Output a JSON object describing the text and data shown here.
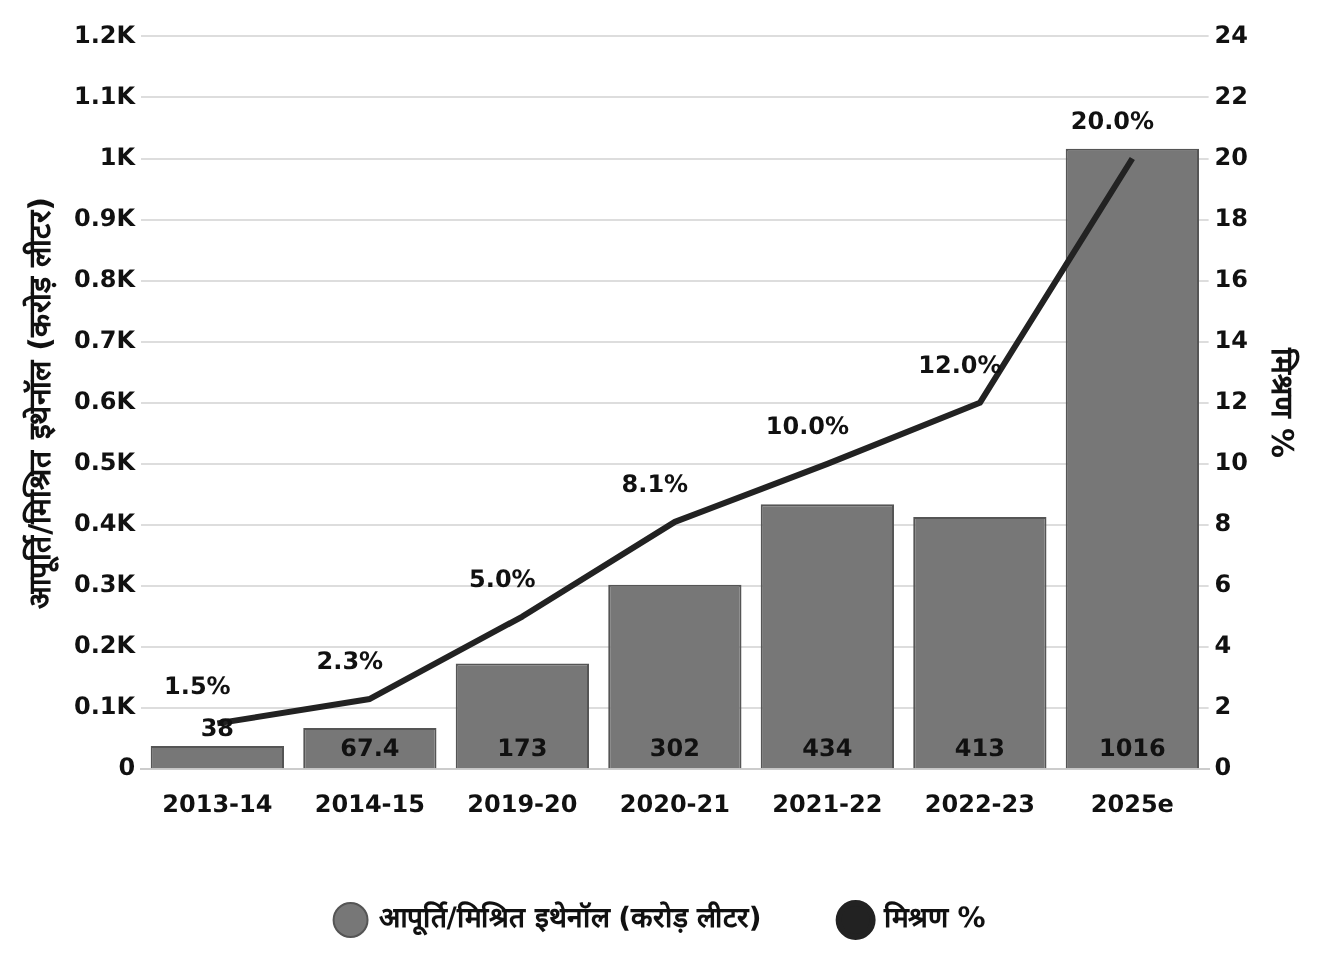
{
  "chart_data": {
    "type": "bar",
    "categories": [
      "2013-14",
      "2014-15",
      "2019-20",
      "2020-21",
      "2021-22",
      "2022-23",
      "2025e"
    ],
    "series": [
      {
        "name": "आपूर्ति/मिश्रित इथेनॉल (करोड़ लीटर)",
        "color": "#777777",
        "values": [
          38,
          67.4,
          173,
          302,
          434,
          413,
          1016
        ],
        "value_labels": [
          "38",
          "67.4",
          "173",
          "302",
          "434",
          "413",
          "1016"
        ]
      },
      {
        "name": "मिश्रण %",
        "type": "line",
        "axis": "y2",
        "color": "#222222",
        "values": [
          1.5,
          2.3,
          5.0,
          8.1,
          10.0,
          12.0,
          20.0
        ],
        "value_labels": [
          "1.5%",
          "2.3%",
          "5.0%",
          "8.1%",
          "10.0%",
          "12.0%",
          "20.0%"
        ]
      }
    ],
    "ylabel": "आपूर्ति/मिश्रित इथेनॉल (करोड़ लीटर)",
    "y2label": "मिश्रण %",
    "ylim": [
      0,
      1200
    ],
    "yticks": [
      0,
      {
        "value": 100,
        "label": "0.1K"
      },
      {
        "value": 200,
        "label": "0.2K"
      },
      {
        "value": 300,
        "label": "0.3K"
      },
      {
        "value": 400,
        "label": "0.4K"
      },
      {
        "value": 500,
        "label": "0.5K"
      },
      {
        "value": 600,
        "label": "0.6K"
      },
      {
        "value": 700,
        "label": "0.7K"
      },
      {
        "value": 800,
        "label": "0.8K"
      },
      {
        "value": 900,
        "label": "0.9K"
      },
      {
        "value": 1000,
        "label": "1K"
      },
      {
        "value": 1100,
        "label": "1.1K"
      },
      {
        "value": 1200,
        "label": "1.2K"
      }
    ],
    "y2lim": [
      0,
      24
    ],
    "y2ticks": [
      0,
      2,
      4,
      6,
      8,
      10,
      12,
      14,
      16,
      18,
      20,
      22,
      24
    ],
    "grid": "y",
    "legend": "bottom"
  }
}
